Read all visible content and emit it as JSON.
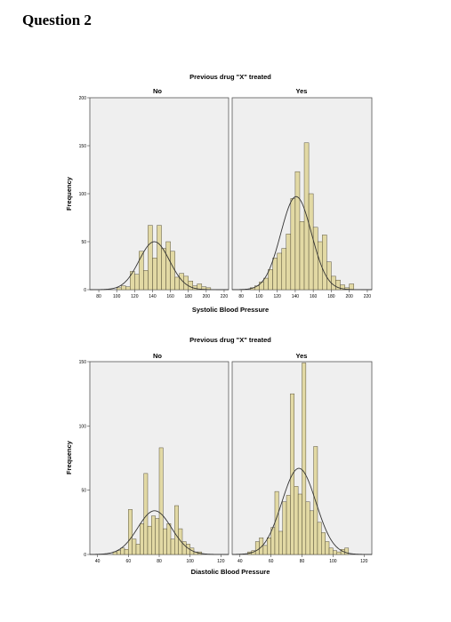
{
  "heading": "Question 2",
  "colors": {
    "bar_fill": "#e2d9a4",
    "bar_stroke": "#4b4530",
    "panel_bg": "#efefef",
    "curve": "#333333"
  },
  "chart_data": [
    {
      "type": "bar",
      "title": "Previous drug \"X\" treated",
      "xlabel": "Systolic Blood Pressure",
      "ylabel": "Frequency",
      "bin_width": 5,
      "xlim": [
        70,
        225
      ],
      "ylim": [
        0,
        200
      ],
      "xticks": [
        80,
        100,
        120,
        140,
        160,
        180,
        200,
        220
      ],
      "yticks": [
        0,
        50,
        100,
        150,
        200
      ],
      "grid": false,
      "series": [
        {
          "name": "No",
          "bin_starts": [
            100,
            105,
            110,
            115,
            120,
            125,
            130,
            135,
            140,
            145,
            150,
            155,
            160,
            165,
            170,
            175,
            180,
            185,
            190,
            195,
            200
          ],
          "values": [
            2,
            4,
            3,
            19,
            16,
            40,
            20,
            67,
            33,
            67,
            43,
            50,
            40,
            13,
            17,
            14,
            9,
            4,
            6,
            3,
            2
          ],
          "curve": {
            "mean": 142,
            "sd": 17,
            "peak": 50
          }
        },
        {
          "name": "Yes",
          "bin_starts": [
            90,
            95,
            100,
            105,
            110,
            115,
            120,
            125,
            130,
            135,
            140,
            145,
            150,
            155,
            160,
            165,
            170,
            175,
            180,
            185,
            190,
            195,
            200
          ],
          "values": [
            2,
            4,
            8,
            12,
            21,
            33,
            38,
            43,
            58,
            95,
            123,
            71,
            153,
            100,
            65,
            50,
            57,
            29,
            14,
            10,
            5,
            2,
            6
          ],
          "curve": {
            "mean": 141,
            "sd": 17,
            "peak": 97
          }
        }
      ]
    },
    {
      "type": "bar",
      "title": "Previous drug \"X\" treated",
      "xlabel": "Diastolic Blood Pressure",
      "ylabel": "Frequency",
      "bin_width": 2.5,
      "xlim": [
        35,
        125
      ],
      "ylim": [
        0,
        150
      ],
      "xticks": [
        40,
        60,
        80,
        100,
        120
      ],
      "yticks": [
        0,
        50,
        100,
        150
      ],
      "grid": false,
      "series": [
        {
          "name": "No",
          "bin_starts": [
            50,
            52.5,
            55,
            57.5,
            60,
            62.5,
            65,
            67.5,
            70,
            72.5,
            75,
            77.5,
            80,
            82.5,
            85,
            87.5,
            90,
            92.5,
            95,
            97.5,
            100,
            102.5,
            105
          ],
          "values": [
            2,
            3,
            5,
            4,
            35,
            12,
            8,
            24,
            63,
            22,
            30,
            28,
            83,
            20,
            24,
            12,
            38,
            20,
            10,
            8,
            5,
            2,
            2
          ],
          "curve": {
            "mean": 77,
            "sd": 11,
            "peak": 34
          }
        },
        {
          "name": "Yes",
          "bin_starts": [
            45,
            47.5,
            50,
            52.5,
            55,
            57.5,
            60,
            62.5,
            65,
            67.5,
            70,
            72.5,
            75,
            77.5,
            80,
            82.5,
            85,
            87.5,
            90,
            92.5,
            95,
            97.5,
            100,
            102.5,
            105,
            107.5
          ],
          "values": [
            2,
            3,
            10,
            13,
            7,
            13,
            21,
            49,
            18,
            41,
            46,
            125,
            53,
            47,
            149,
            41,
            34,
            84,
            25,
            17,
            10,
            5,
            3,
            2,
            4,
            5
          ],
          "curve": {
            "mean": 78,
            "sd": 11,
            "peak": 67
          }
        }
      ]
    }
  ]
}
